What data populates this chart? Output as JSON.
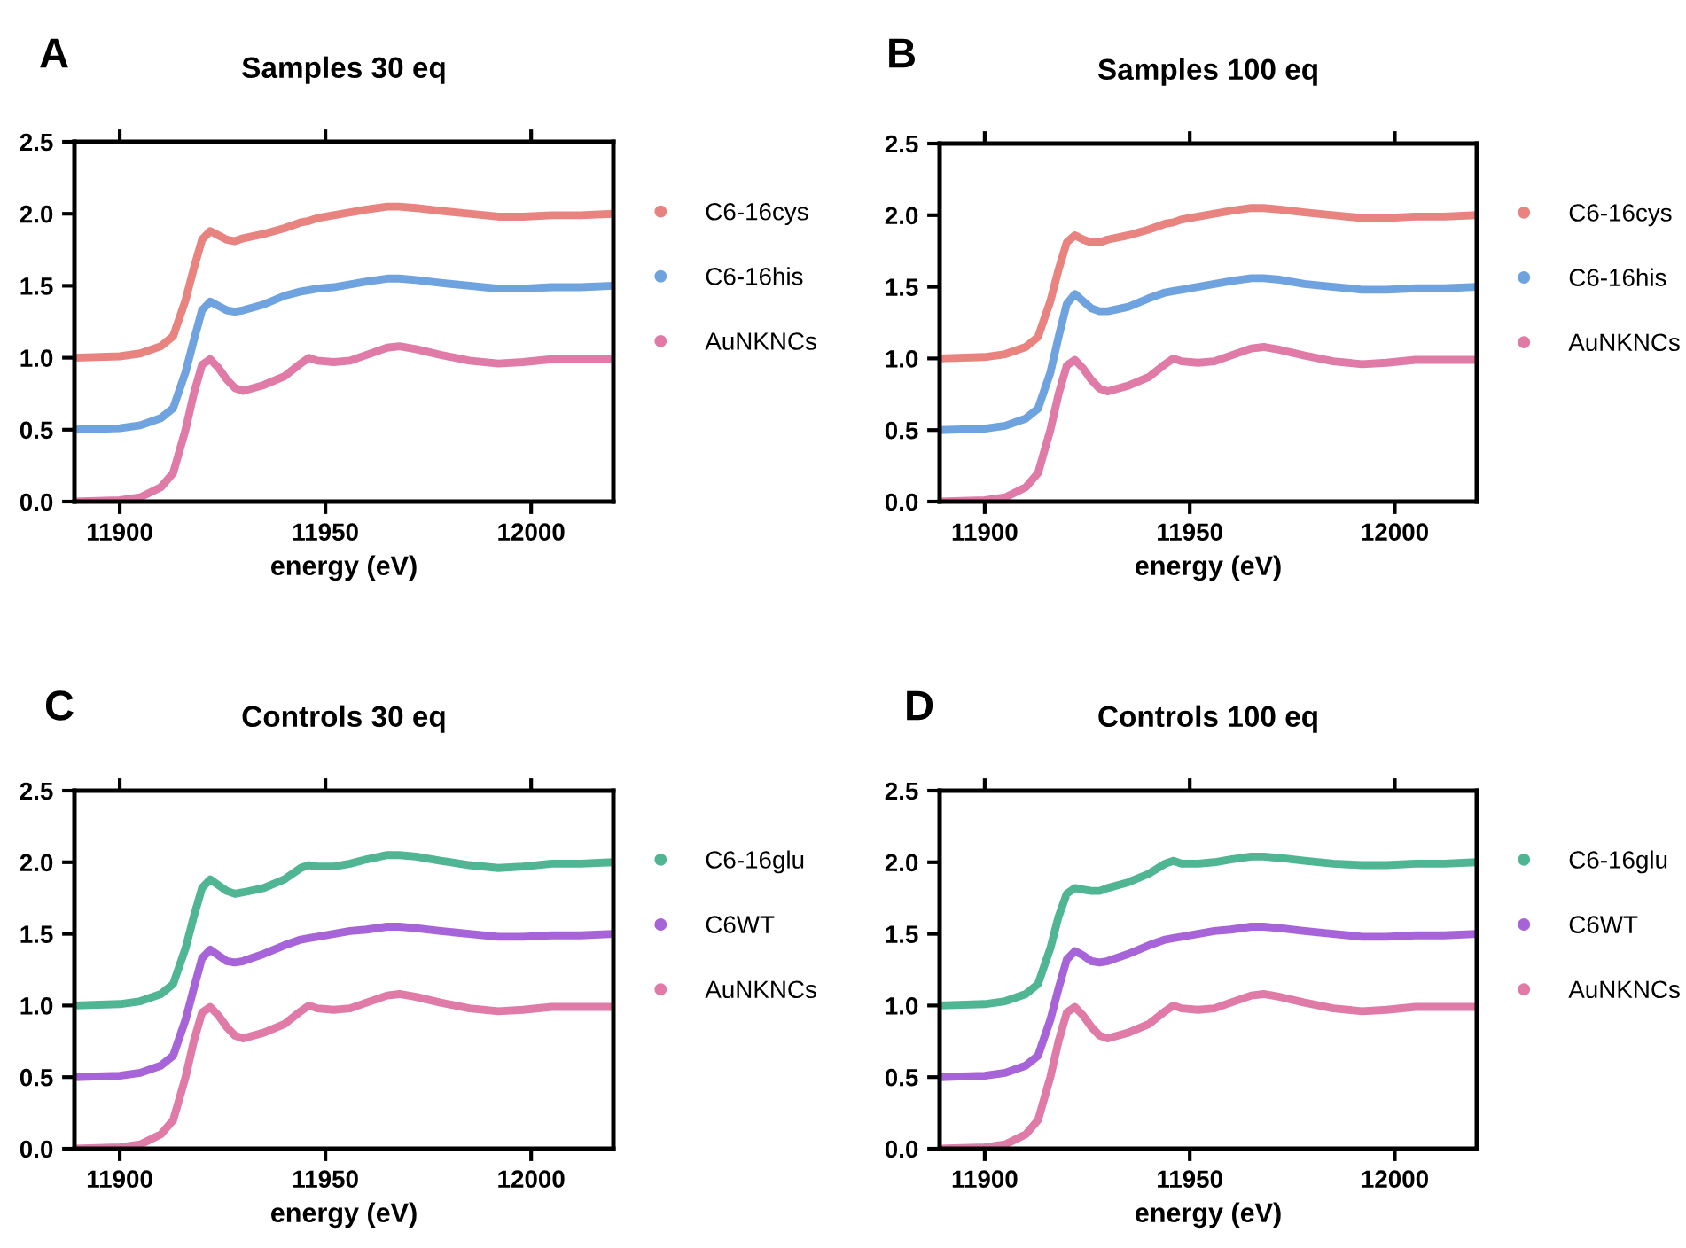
{
  "chart_data": [
    {
      "type": "line",
      "annotations": [
        "A"
      ],
      "title": "Samples 30 eq",
      "xlabel": "energy (eV)",
      "xlim": [
        11889,
        12020
      ],
      "xticks": [
        11900,
        11950,
        12000
      ],
      "ylim": [
        0,
        2.5
      ],
      "yticks": [
        {
          "value": 0,
          "label": "0.0"
        },
        0.5,
        {
          "value": 1,
          "label": "1.0"
        },
        1.5,
        {
          "value": 2,
          "label": "2.0"
        },
        2.5
      ],
      "legend": "right",
      "x": [
        11889,
        11900,
        11905,
        11910,
        11913,
        11916,
        11918,
        11920,
        11922,
        11924,
        11926,
        11928,
        11930,
        11935,
        11940,
        11944,
        11946,
        11948,
        11952,
        11956,
        11960,
        11965,
        11968,
        11972,
        11978,
        11985,
        11992,
        11998,
        12005,
        12012,
        12020
      ],
      "series": [
        {
          "name": "C6-16cys",
          "color": "#e8837f",
          "values": [
            1.0,
            1.01,
            1.03,
            1.08,
            1.15,
            1.4,
            1.62,
            1.82,
            1.88,
            1.85,
            1.82,
            1.81,
            1.83,
            1.86,
            1.9,
            1.94,
            1.95,
            1.97,
            1.99,
            2.01,
            2.03,
            2.05,
            2.05,
            2.04,
            2.02,
            2.0,
            1.98,
            1.98,
            1.99,
            1.99,
            2.0
          ]
        },
        {
          "name": "C6-16his",
          "color": "#6fa3e0",
          "values": [
            0.5,
            0.51,
            0.53,
            0.58,
            0.65,
            0.9,
            1.12,
            1.33,
            1.39,
            1.36,
            1.33,
            1.32,
            1.33,
            1.37,
            1.43,
            1.46,
            1.47,
            1.48,
            1.49,
            1.51,
            1.53,
            1.55,
            1.55,
            1.54,
            1.52,
            1.5,
            1.48,
            1.48,
            1.49,
            1.49,
            1.5
          ]
        },
        {
          "name": "AuNKNCs",
          "color": "#e07aa6",
          "values": [
            0.0,
            0.01,
            0.03,
            0.1,
            0.2,
            0.5,
            0.75,
            0.95,
            0.99,
            0.93,
            0.85,
            0.79,
            0.77,
            0.81,
            0.87,
            0.96,
            1.0,
            0.98,
            0.97,
            0.98,
            1.02,
            1.07,
            1.08,
            1.06,
            1.02,
            0.98,
            0.96,
            0.97,
            0.99,
            0.99,
            0.99
          ]
        }
      ]
    },
    {
      "type": "line",
      "annotations": [
        "B"
      ],
      "title": "Samples 100 eq",
      "xlabel": "energy (eV)",
      "xlim": [
        11889,
        12020
      ],
      "xticks": [
        11900,
        11950,
        12000
      ],
      "ylim": [
        0,
        2.5
      ],
      "yticks": [
        {
          "value": 0,
          "label": "0.0"
        },
        0.5,
        {
          "value": 1,
          "label": "1.0"
        },
        1.5,
        {
          "value": 2,
          "label": "2.0"
        },
        2.5
      ],
      "legend": "right",
      "x": [
        11889,
        11900,
        11905,
        11910,
        11913,
        11916,
        11918,
        11920,
        11922,
        11924,
        11926,
        11928,
        11930,
        11935,
        11940,
        11944,
        11946,
        11948,
        11952,
        11956,
        11960,
        11965,
        11968,
        11972,
        11978,
        11985,
        11992,
        11998,
        12005,
        12012,
        12020
      ],
      "series": [
        {
          "name": "C6-16cys",
          "color": "#e8837f",
          "values": [
            1.0,
            1.01,
            1.03,
            1.08,
            1.15,
            1.4,
            1.62,
            1.81,
            1.86,
            1.83,
            1.81,
            1.81,
            1.83,
            1.86,
            1.9,
            1.94,
            1.95,
            1.97,
            1.99,
            2.01,
            2.03,
            2.05,
            2.05,
            2.04,
            2.02,
            2.0,
            1.98,
            1.98,
            1.99,
            1.99,
            2.0
          ]
        },
        {
          "name": "C6-16his",
          "color": "#6fa3e0",
          "values": [
            0.5,
            0.51,
            0.53,
            0.58,
            0.65,
            0.9,
            1.15,
            1.38,
            1.45,
            1.4,
            1.35,
            1.33,
            1.33,
            1.36,
            1.42,
            1.46,
            1.47,
            1.48,
            1.5,
            1.52,
            1.54,
            1.56,
            1.56,
            1.55,
            1.52,
            1.5,
            1.48,
            1.48,
            1.49,
            1.49,
            1.5
          ]
        },
        {
          "name": "AuNKNCs",
          "color": "#e07aa6",
          "values": [
            0.0,
            0.01,
            0.03,
            0.1,
            0.2,
            0.5,
            0.75,
            0.95,
            0.99,
            0.93,
            0.85,
            0.79,
            0.77,
            0.81,
            0.87,
            0.96,
            1.0,
            0.98,
            0.97,
            0.98,
            1.02,
            1.07,
            1.08,
            1.06,
            1.02,
            0.98,
            0.96,
            0.97,
            0.99,
            0.99,
            0.99
          ]
        }
      ]
    },
    {
      "type": "line",
      "annotations": [
        "C"
      ],
      "title": "Controls 30 eq",
      "xlabel": "energy (eV)",
      "xlim": [
        11889,
        12020
      ],
      "xticks": [
        11900,
        11950,
        12000
      ],
      "ylim": [
        0,
        2.5
      ],
      "yticks": [
        {
          "value": 0,
          "label": "0.0"
        },
        0.5,
        {
          "value": 1,
          "label": "1.0"
        },
        1.5,
        {
          "value": 2,
          "label": "2.0"
        },
        2.5
      ],
      "legend": "right",
      "x": [
        11889,
        11900,
        11905,
        11910,
        11913,
        11916,
        11918,
        11920,
        11922,
        11924,
        11926,
        11928,
        11930,
        11935,
        11940,
        11944,
        11946,
        11948,
        11952,
        11956,
        11960,
        11965,
        11968,
        11972,
        11978,
        11985,
        11992,
        11998,
        12005,
        12012,
        12020
      ],
      "series": [
        {
          "name": "C6-16glu",
          "color": "#4fb592",
          "values": [
            1.0,
            1.01,
            1.03,
            1.08,
            1.15,
            1.4,
            1.62,
            1.82,
            1.88,
            1.84,
            1.8,
            1.78,
            1.79,
            1.82,
            1.88,
            1.96,
            1.98,
            1.97,
            1.97,
            1.99,
            2.02,
            2.05,
            2.05,
            2.04,
            2.01,
            1.98,
            1.96,
            1.97,
            1.99,
            1.99,
            2.0
          ]
        },
        {
          "name": "C6WT",
          "color": "#a763d8",
          "values": [
            0.5,
            0.51,
            0.53,
            0.58,
            0.65,
            0.9,
            1.12,
            1.33,
            1.39,
            1.35,
            1.31,
            1.3,
            1.31,
            1.36,
            1.42,
            1.46,
            1.47,
            1.48,
            1.5,
            1.52,
            1.53,
            1.55,
            1.55,
            1.54,
            1.52,
            1.5,
            1.48,
            1.48,
            1.49,
            1.49,
            1.5
          ]
        },
        {
          "name": "AuNKNCs",
          "color": "#e07aa6",
          "values": [
            0.0,
            0.01,
            0.03,
            0.1,
            0.2,
            0.5,
            0.75,
            0.95,
            0.99,
            0.93,
            0.85,
            0.79,
            0.77,
            0.81,
            0.87,
            0.96,
            1.0,
            0.98,
            0.97,
            0.98,
            1.02,
            1.07,
            1.08,
            1.06,
            1.02,
            0.98,
            0.96,
            0.97,
            0.99,
            0.99,
            0.99
          ]
        }
      ]
    },
    {
      "type": "line",
      "annotations": [
        "D"
      ],
      "title": "Controls 100 eq",
      "xlabel": "energy (eV)",
      "xlim": [
        11889,
        12020
      ],
      "xticks": [
        11900,
        11950,
        12000
      ],
      "ylim": [
        0,
        2.5
      ],
      "yticks": [
        {
          "value": 0,
          "label": "0.0"
        },
        0.5,
        {
          "value": 1,
          "label": "1.0"
        },
        1.5,
        {
          "value": 2,
          "label": "2.0"
        },
        2.5
      ],
      "legend": "right",
      "x": [
        11889,
        11900,
        11905,
        11910,
        11913,
        11916,
        11918,
        11920,
        11922,
        11924,
        11926,
        11928,
        11930,
        11935,
        11940,
        11944,
        11946,
        11948,
        11952,
        11956,
        11960,
        11965,
        11968,
        11972,
        11978,
        11985,
        11992,
        11998,
        12005,
        12012,
        12020
      ],
      "series": [
        {
          "name": "C6-16glu",
          "color": "#4fb592",
          "values": [
            1.0,
            1.01,
            1.03,
            1.08,
            1.15,
            1.4,
            1.62,
            1.78,
            1.82,
            1.81,
            1.8,
            1.8,
            1.82,
            1.86,
            1.92,
            1.99,
            2.01,
            1.99,
            1.99,
            2.0,
            2.02,
            2.04,
            2.04,
            2.03,
            2.01,
            1.99,
            1.98,
            1.98,
            1.99,
            1.99,
            2.0
          ]
        },
        {
          "name": "C6WT",
          "color": "#a763d8",
          "values": [
            0.5,
            0.51,
            0.53,
            0.58,
            0.65,
            0.9,
            1.12,
            1.32,
            1.38,
            1.35,
            1.31,
            1.3,
            1.31,
            1.36,
            1.42,
            1.46,
            1.47,
            1.48,
            1.5,
            1.52,
            1.53,
            1.55,
            1.55,
            1.54,
            1.52,
            1.5,
            1.48,
            1.48,
            1.49,
            1.49,
            1.5
          ]
        },
        {
          "name": "AuNKNCs",
          "color": "#e07aa6",
          "values": [
            0.0,
            0.01,
            0.03,
            0.1,
            0.2,
            0.5,
            0.75,
            0.95,
            0.99,
            0.93,
            0.85,
            0.79,
            0.77,
            0.81,
            0.87,
            0.96,
            1.0,
            0.98,
            0.97,
            0.98,
            1.02,
            1.07,
            1.08,
            1.06,
            1.02,
            0.98,
            0.96,
            0.97,
            0.99,
            0.99,
            0.99
          ]
        }
      ]
    }
  ]
}
